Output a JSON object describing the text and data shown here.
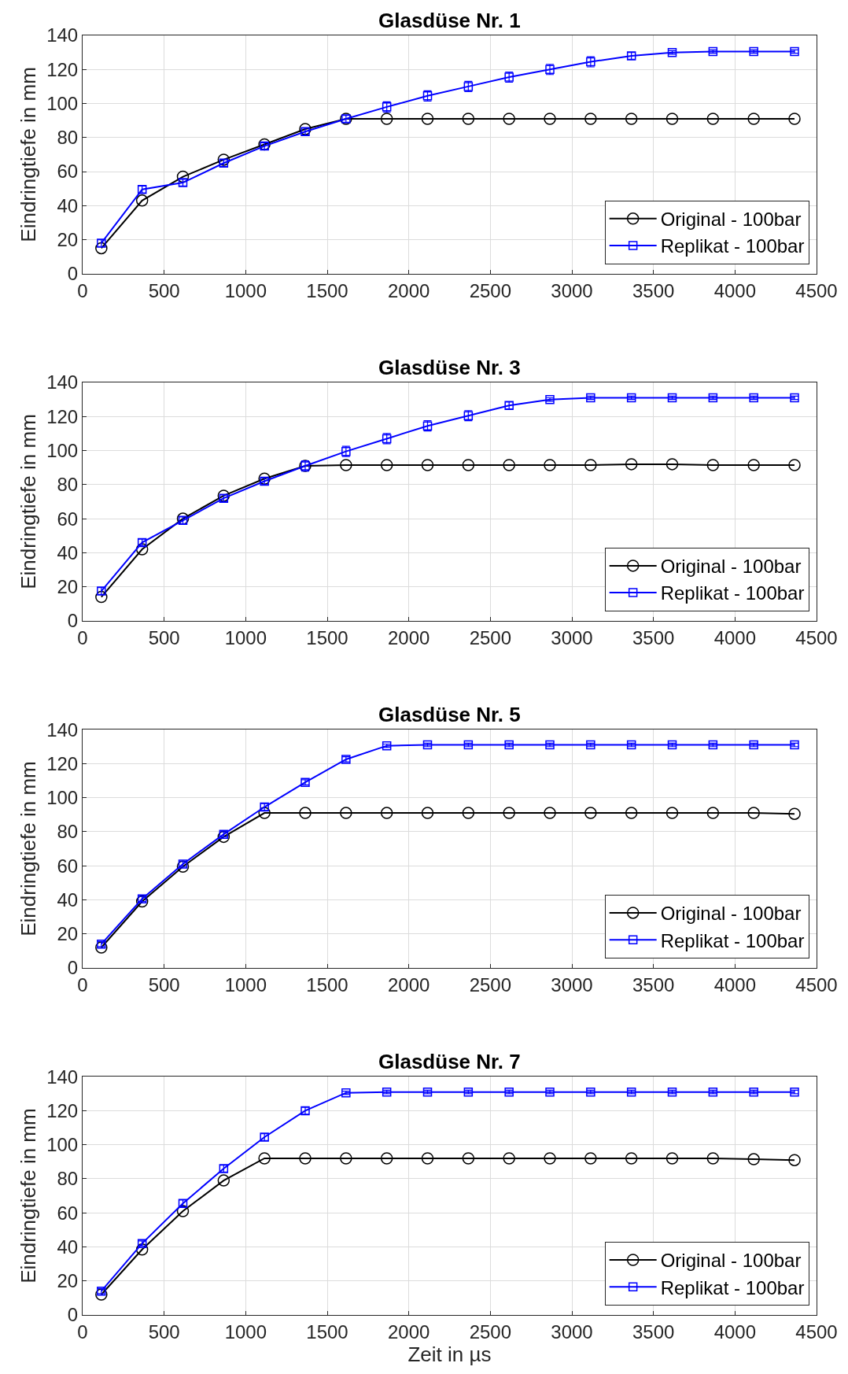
{
  "chart_data": [
    {
      "type": "line",
      "title": "Glasdüse Nr. 1",
      "ylabel": "Eindringtiefe in mm",
      "x": [
        115,
        365,
        615,
        865,
        1115,
        1365,
        1615,
        1865,
        2115,
        2365,
        2615,
        2865,
        3115,
        3365,
        3615,
        3865,
        4115,
        4365
      ],
      "xlim": [
        0,
        4500
      ],
      "xticks": [
        0,
        500,
        1000,
        1500,
        2000,
        2500,
        3000,
        3500,
        4000,
        4500
      ],
      "ylim": [
        0,
        140
      ],
      "yticks": [
        0,
        20,
        40,
        60,
        80,
        100,
        120,
        140
      ],
      "grid": true,
      "legend": "bottom right",
      "series": [
        {
          "name": "Original - 100bar",
          "color": "#000000",
          "marker": "circle",
          "values": [
            15,
            43,
            57,
            67,
            76,
            85,
            91,
            91,
            91,
            91,
            91,
            91,
            91,
            91,
            91,
            91,
            91,
            91
          ]
        },
        {
          "name": "Replikat - 100bar",
          "color": "#0000ff",
          "marker": "square",
          "values": [
            18,
            49.5,
            53.5,
            65,
            75,
            83.5,
            91,
            98,
            104.5,
            110,
            115.5,
            120,
            124.5,
            128,
            130,
            130.5,
            130.5,
            130.5
          ],
          "errors": [
            2,
            2,
            2,
            2,
            2,
            2,
            2,
            3,
            3,
            3,
            3,
            3,
            3,
            2,
            1,
            1,
            1,
            1
          ]
        }
      ]
    },
    {
      "type": "line",
      "title": "Glasdüse Nr. 3",
      "ylabel": "Eindringtiefe in mm",
      "x": [
        115,
        365,
        615,
        865,
        1115,
        1365,
        1615,
        1865,
        2115,
        2365,
        2615,
        2865,
        3115,
        3365,
        3615,
        3865,
        4115,
        4365
      ],
      "xlim": [
        0,
        4500
      ],
      "xticks": [
        0,
        500,
        1000,
        1500,
        2000,
        2500,
        3000,
        3500,
        4000,
        4500
      ],
      "ylim": [
        0,
        140
      ],
      "yticks": [
        0,
        20,
        40,
        60,
        80,
        100,
        120,
        140
      ],
      "grid": true,
      "legend": "bottom right",
      "series": [
        {
          "name": "Original - 100bar",
          "color": "#000000",
          "marker": "circle",
          "values": [
            14,
            42,
            60,
            73.5,
            83.5,
            91,
            91.5,
            91.5,
            91.5,
            91.5,
            91.5,
            91.5,
            91.5,
            92,
            92,
            91.5,
            91.5,
            91.5
          ]
        },
        {
          "name": "Replikat - 100bar",
          "color": "#0000ff",
          "marker": "square",
          "values": [
            17.5,
            46,
            59,
            72,
            82,
            91,
            99.5,
            107,
            114.5,
            120.5,
            126.5,
            130,
            131,
            131,
            131,
            131,
            131,
            131
          ],
          "errors": [
            2,
            2,
            2,
            2,
            2,
            3,
            3,
            3,
            3,
            3,
            2,
            1,
            1,
            1,
            1,
            1,
            1,
            1
          ]
        }
      ]
    },
    {
      "type": "line",
      "title": "Glasdüse Nr. 5",
      "ylabel": "Eindringtiefe in mm",
      "x": [
        115,
        365,
        615,
        865,
        1115,
        1365,
        1615,
        1865,
        2115,
        2365,
        2615,
        2865,
        3115,
        3365,
        3615,
        3865,
        4115,
        4365
      ],
      "xlim": [
        0,
        4500
      ],
      "xticks": [
        0,
        500,
        1000,
        1500,
        2000,
        2500,
        3000,
        3500,
        4000,
        4500
      ],
      "ylim": [
        0,
        140
      ],
      "yticks": [
        0,
        20,
        40,
        60,
        80,
        100,
        120,
        140
      ],
      "grid": true,
      "legend": "bottom right",
      "series": [
        {
          "name": "Original - 100bar",
          "color": "#000000",
          "marker": "circle",
          "values": [
            12,
            39,
            59.5,
            77,
            91,
            91,
            91,
            91,
            91,
            91,
            91,
            91,
            91,
            91,
            91,
            91,
            91,
            90.5
          ]
        },
        {
          "name": "Replikat - 100bar",
          "color": "#0000ff",
          "marker": "square",
          "values": [
            14,
            40.5,
            61,
            78.5,
            94.5,
            109,
            122.5,
            130.5,
            131,
            131,
            131,
            131,
            131,
            131,
            131,
            131,
            131,
            131
          ],
          "errors": [
            1.5,
            1.5,
            1.5,
            1.5,
            2,
            1.5,
            1.5,
            1,
            1,
            1,
            1,
            1,
            1,
            1,
            1,
            1,
            1,
            1
          ]
        }
      ]
    },
    {
      "type": "line",
      "title": "Glasdüse Nr. 7",
      "ylabel": "Eindringtiefe in mm",
      "xlabel": "Zeit in µs",
      "x": [
        115,
        365,
        615,
        865,
        1115,
        1365,
        1615,
        1865,
        2115,
        2365,
        2615,
        2865,
        3115,
        3365,
        3615,
        3865,
        4115,
        4365
      ],
      "xlim": [
        0,
        4500
      ],
      "xticks": [
        0,
        500,
        1000,
        1500,
        2000,
        2500,
        3000,
        3500,
        4000,
        4500
      ],
      "ylim": [
        0,
        140
      ],
      "yticks": [
        0,
        20,
        40,
        60,
        80,
        100,
        120,
        140
      ],
      "grid": true,
      "legend": "bottom right",
      "series": [
        {
          "name": "Original - 100bar",
          "color": "#000000",
          "marker": "circle",
          "values": [
            12,
            38.5,
            61,
            79,
            92,
            92,
            92,
            92,
            92,
            92,
            92,
            92,
            92,
            92,
            92,
            92,
            91.5,
            91
          ]
        },
        {
          "name": "Replikat - 100bar",
          "color": "#0000ff",
          "marker": "square",
          "values": [
            14,
            42,
            65.5,
            86,
            104.5,
            120,
            130.5,
            131,
            131,
            131,
            131,
            131,
            131,
            131,
            131,
            131,
            131,
            131
          ],
          "errors": [
            1.5,
            1.5,
            2,
            2,
            2,
            2,
            1,
            1,
            1,
            1,
            1,
            1,
            1,
            1,
            1,
            1,
            1,
            1
          ]
        }
      ]
    }
  ]
}
